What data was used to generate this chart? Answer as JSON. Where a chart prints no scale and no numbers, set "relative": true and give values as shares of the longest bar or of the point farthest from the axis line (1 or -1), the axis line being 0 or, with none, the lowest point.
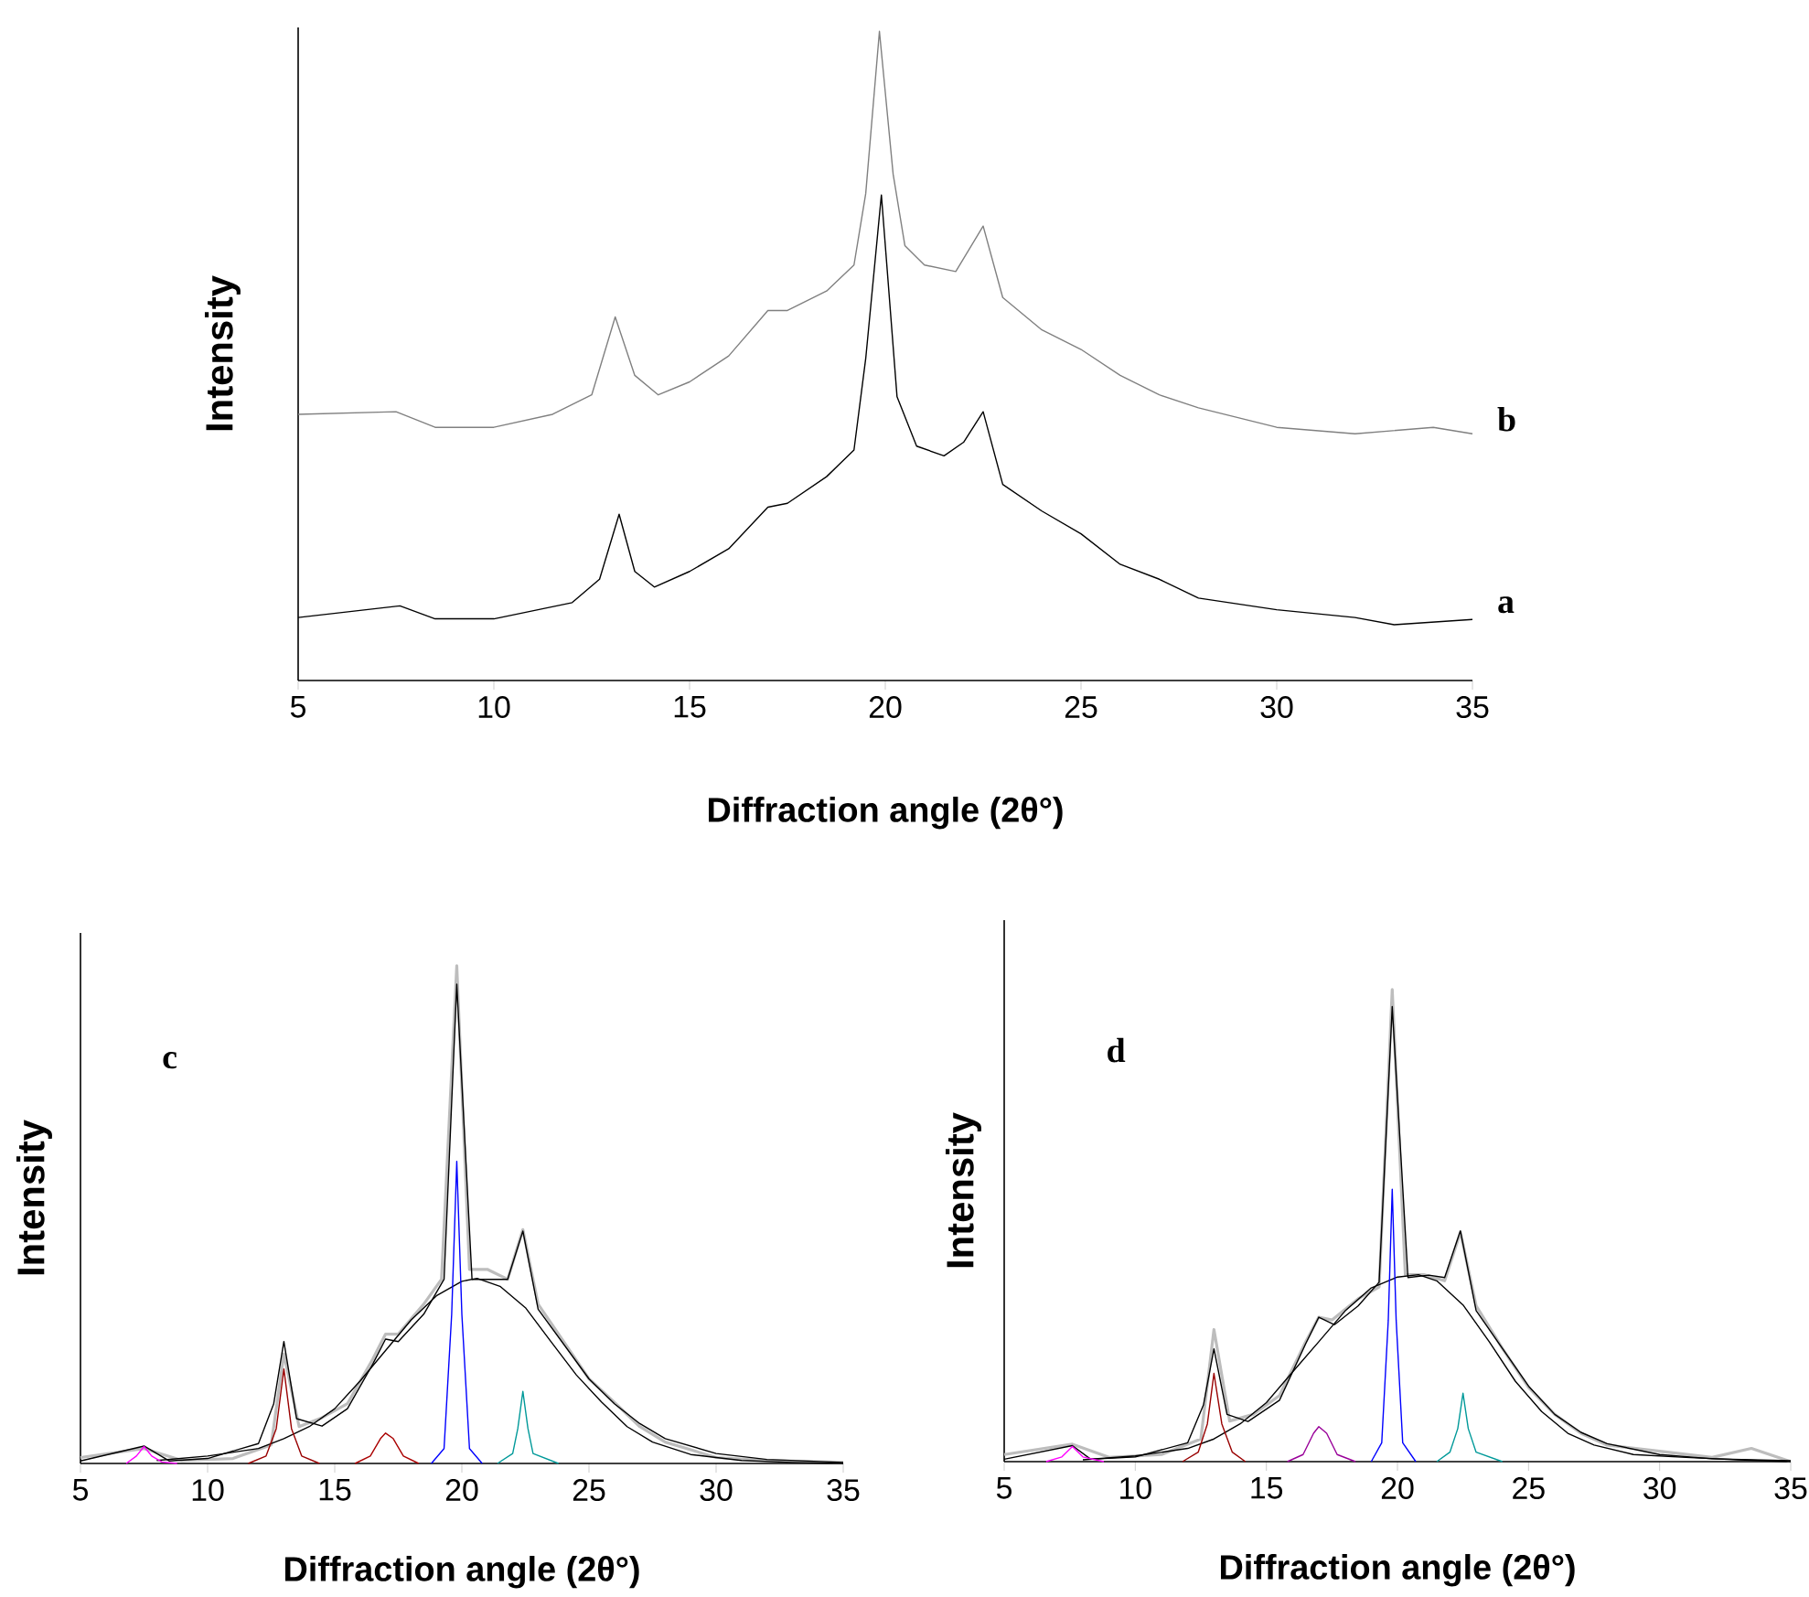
{
  "chart_data": [
    {
      "type": "line",
      "relative": true,
      "xlabel": "Diffraction angle (2θ°)",
      "ylabel": "Intensity",
      "xlim": [
        5,
        35
      ],
      "xticks": [
        5,
        10,
        15,
        20,
        25,
        30,
        35
      ],
      "tick_labels": "x",
      "series": [
        {
          "name": "b",
          "color": "#808080",
          "x": [
            5,
            7.5,
            8.5,
            10,
            11.5,
            12.5,
            13.1,
            13.6,
            14.2,
            15,
            16,
            17,
            17.5,
            18.5,
            19.2,
            19.5,
            19.85,
            20.2,
            20.5,
            21,
            21.8,
            22.5,
            23,
            24,
            25,
            26,
            27,
            28,
            30,
            32,
            34,
            35
          ],
          "values": [
            0.41,
            0.414,
            0.39,
            0.39,
            0.41,
            0.44,
            0.56,
            0.47,
            0.44,
            0.46,
            0.5,
            0.57,
            0.57,
            0.6,
            0.64,
            0.75,
            1.0,
            0.78,
            0.67,
            0.64,
            0.63,
            0.7,
            0.59,
            0.54,
            0.51,
            0.47,
            0.44,
            0.42,
            0.39,
            0.38,
            0.39,
            0.38
          ]
        },
        {
          "name": "a",
          "color": "#000000",
          "x": [
            5,
            7.6,
            8.5,
            10,
            12,
            12.7,
            13.2,
            13.6,
            14.1,
            15,
            16,
            17,
            17.5,
            18.5,
            19.2,
            19.5,
            19.9,
            20.3,
            20.8,
            21.5,
            22,
            22.5,
            23,
            24,
            25,
            26,
            27,
            28,
            30,
            32,
            33,
            35
          ],
          "values": [
            0.097,
            0.115,
            0.095,
            0.095,
            0.12,
            0.156,
            0.256,
            0.168,
            0.144,
            0.168,
            0.203,
            0.267,
            0.273,
            0.314,
            0.355,
            0.496,
            0.748,
            0.437,
            0.361,
            0.346,
            0.367,
            0.414,
            0.302,
            0.261,
            0.226,
            0.179,
            0.156,
            0.127,
            0.109,
            0.097,
            0.086,
            0.094
          ]
        }
      ]
    },
    {
      "type": "line",
      "relative": true,
      "xlabel": "Diffraction angle (2θ°)",
      "ylabel": "Intensity",
      "xlim": [
        5,
        35
      ],
      "xticks": [
        5,
        10,
        15,
        20,
        25,
        30,
        35
      ],
      "tick_labels": "x",
      "annotations": [
        "c"
      ],
      "series": [
        {
          "color": "#bdbdbd",
          "x": [
            5,
            7.5,
            9,
            11,
            12.5,
            13,
            13.6,
            14.5,
            15.5,
            16.5,
            17,
            17.5,
            18.5,
            19.2,
            19.8,
            20.3,
            21,
            21.8,
            22.4,
            23,
            24,
            25,
            26,
            27,
            28,
            30,
            32,
            35
          ],
          "values": [
            0.012,
            0.03,
            0.006,
            0.01,
            0.037,
            0.22,
            0.074,
            0.092,
            0.12,
            0.21,
            0.26,
            0.26,
            0.32,
            0.37,
            1.0,
            0.39,
            0.39,
            0.37,
            0.47,
            0.32,
            0.245,
            0.17,
            0.123,
            0.074,
            0.043,
            0.012,
            0.006,
            0.002
          ]
        },
        {
          "color": "#000000",
          "x": [
            5,
            7.5,
            8.5,
            10,
            12,
            12.6,
            13,
            13.5,
            14.5,
            15.5,
            16.5,
            17,
            17.5,
            18.5,
            19.3,
            19.8,
            20.4,
            21.2,
            21.8,
            22.4,
            23,
            24,
            25,
            26,
            27,
            28,
            30,
            32,
            35
          ],
          "values": [
            0.005,
            0.035,
            0.005,
            0.01,
            0.04,
            0.12,
            0.245,
            0.09,
            0.075,
            0.11,
            0.2,
            0.25,
            0.245,
            0.3,
            0.37,
            0.963,
            0.37,
            0.37,
            0.37,
            0.467,
            0.31,
            0.24,
            0.17,
            0.12,
            0.08,
            0.05,
            0.02,
            0.008,
            0.002
          ]
        },
        {
          "color": "#000000",
          "x": [
            8,
            10,
            12,
            13,
            14,
            15,
            16,
            17,
            18,
            19,
            20,
            20.6,
            21.5,
            22.5,
            23.5,
            24.5,
            25.5,
            26.5,
            27.5,
            29,
            31,
            33,
            35
          ],
          "values": [
            0.006,
            0.015,
            0.03,
            0.05,
            0.074,
            0.11,
            0.166,
            0.227,
            0.288,
            0.337,
            0.366,
            0.372,
            0.356,
            0.313,
            0.245,
            0.178,
            0.123,
            0.074,
            0.043,
            0.018,
            0.006,
            0.002,
            0
          ]
        },
        {
          "color": "#ff00ff",
          "x": [
            6.8,
            7.2,
            7.5,
            7.8,
            8.2,
            8.8
          ],
          "values": [
            0,
            0.015,
            0.034,
            0.015,
            0.003,
            0
          ]
        },
        {
          "color": "#990000",
          "x": [
            11.6,
            12.3,
            12.7,
            13.0,
            13.3,
            13.7,
            14.4
          ],
          "values": [
            0,
            0.015,
            0.07,
            0.19,
            0.07,
            0.015,
            0
          ]
        },
        {
          "color": "#aa0000",
          "x": [
            15.8,
            16.4,
            16.8,
            17.0,
            17.3,
            17.7,
            18.3
          ],
          "values": [
            0,
            0.015,
            0.05,
            0.061,
            0.05,
            0.015,
            0
          ]
        },
        {
          "color": "#0000ff",
          "x": [
            18.8,
            19.3,
            19.6,
            19.8,
            20.0,
            20.3,
            20.8
          ],
          "values": [
            0,
            0.03,
            0.3,
            0.607,
            0.3,
            0.03,
            0
          ]
        },
        {
          "color": "#009999",
          "x": [
            21.4,
            22.0,
            22.2,
            22.4,
            22.6,
            22.8,
            23.8
          ],
          "values": [
            0,
            0.02,
            0.07,
            0.145,
            0.07,
            0.02,
            0
          ]
        }
      ]
    },
    {
      "type": "line",
      "relative": true,
      "xlabel": "Diffraction angle (2θ°)",
      "ylabel": "Intensity",
      "xlim": [
        5,
        35
      ],
      "xticks": [
        5,
        10,
        15,
        20,
        25,
        30,
        35
      ],
      "tick_labels": "x",
      "annotations": [
        "d"
      ],
      "series": [
        {
          "color": "#bdbdbd",
          "x": [
            5,
            7.6,
            9,
            11,
            12.5,
            13,
            13.6,
            14.5,
            15.5,
            16.5,
            17,
            17.5,
            18.5,
            19.3,
            19.8,
            20.3,
            21,
            21.8,
            22.4,
            23,
            24,
            25,
            26,
            27,
            28,
            30,
            32,
            33.5,
            35
          ],
          "values": [
            0.015,
            0.037,
            0.009,
            0.015,
            0.048,
            0.28,
            0.086,
            0.1,
            0.14,
            0.254,
            0.306,
            0.3,
            0.345,
            0.37,
            1.0,
            0.396,
            0.396,
            0.383,
            0.486,
            0.33,
            0.24,
            0.157,
            0.1,
            0.06,
            0.035,
            0.022,
            0.009,
            0.028,
            0
          ]
        },
        {
          "color": "#000000",
          "x": [
            5,
            7.6,
            8.3,
            10,
            12,
            12.6,
            13,
            13.5,
            14.3,
            15.5,
            16.5,
            17,
            17.6,
            18.5,
            19.3,
            19.8,
            20.4,
            21.2,
            21.8,
            22.4,
            23,
            24,
            25,
            26,
            27,
            28,
            30,
            32,
            35
          ],
          "values": [
            0.005,
            0.034,
            0.005,
            0.01,
            0.04,
            0.12,
            0.239,
            0.1,
            0.085,
            0.13,
            0.25,
            0.306,
            0.29,
            0.33,
            0.38,
            0.964,
            0.39,
            0.395,
            0.39,
            0.489,
            0.32,
            0.24,
            0.16,
            0.1,
            0.062,
            0.038,
            0.015,
            0.006,
            0.002
          ]
        },
        {
          "color": "#000000",
          "x": [
            8,
            10,
            12,
            13,
            14,
            15,
            16,
            17,
            18,
            19,
            20,
            20.8,
            21.5,
            22.5,
            23.5,
            24.5,
            25.5,
            26.5,
            27.5,
            29,
            31,
            33,
            35
          ],
          "values": [
            0.004,
            0.012,
            0.028,
            0.048,
            0.08,
            0.125,
            0.19,
            0.254,
            0.319,
            0.368,
            0.391,
            0.396,
            0.383,
            0.332,
            0.254,
            0.17,
            0.106,
            0.06,
            0.035,
            0.015,
            0.009,
            0.004,
            0
          ]
        },
        {
          "color": "#ff00ff",
          "x": [
            6.6,
            7.2,
            7.6,
            8.0,
            8.8
          ],
          "values": [
            0,
            0.01,
            0.032,
            0.01,
            0
          ]
        },
        {
          "color": "#990000",
          "x": [
            11.8,
            12.4,
            12.75,
            13.0,
            13.3,
            13.7,
            14.2
          ],
          "values": [
            0,
            0.02,
            0.08,
            0.187,
            0.08,
            0.02,
            0
          ]
        },
        {
          "color": "#990099",
          "x": [
            15.8,
            16.4,
            16.8,
            17.0,
            17.3,
            17.7,
            18.4
          ],
          "values": [
            0,
            0.015,
            0.06,
            0.074,
            0.06,
            0.015,
            0
          ]
        },
        {
          "color": "#0000ff",
          "x": [
            19.0,
            19.4,
            19.65,
            19.8,
            19.95,
            20.2,
            20.7
          ],
          "values": [
            0,
            0.04,
            0.3,
            0.577,
            0.3,
            0.04,
            0
          ]
        },
        {
          "color": "#009999",
          "x": [
            21.5,
            22.0,
            22.3,
            22.5,
            22.7,
            23.0,
            24.0
          ],
          "values": [
            0,
            0.02,
            0.07,
            0.145,
            0.07,
            0.02,
            0
          ]
        }
      ]
    }
  ]
}
